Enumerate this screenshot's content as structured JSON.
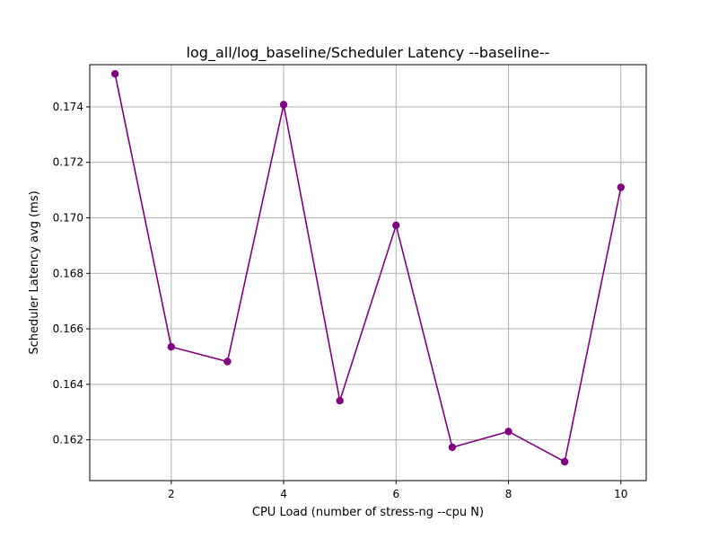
{
  "chart_data": {
    "type": "line",
    "title": "log_all/log_baseline/Scheduler Latency --baseline--",
    "xlabel": "CPU Load (number of stress-ng --cpu N)",
    "ylabel": "Scheduler Latency avg (ms)",
    "xlim": [
      0.55,
      10.45
    ],
    "ylim": [
      0.16053,
      0.17552
    ],
    "xticks": [
      2,
      4,
      6,
      8,
      10
    ],
    "yticks": [
      0.162,
      0.164,
      0.166,
      0.168,
      0.17,
      0.172,
      0.174
    ],
    "ytick_labels": [
      "0.162",
      "0.164",
      "0.166",
      "0.168",
      "0.170",
      "0.172",
      "0.174"
    ],
    "grid": true,
    "series": [
      {
        "color": "#800080",
        "marker": "circle",
        "x": [
          1,
          2,
          3,
          4,
          5,
          6,
          7,
          8,
          9,
          10
        ],
        "y": [
          0.17519,
          0.16535,
          0.16482,
          0.17408,
          0.16341,
          0.16973,
          0.16173,
          0.1623,
          0.16121,
          0.1711
        ]
      }
    ]
  }
}
